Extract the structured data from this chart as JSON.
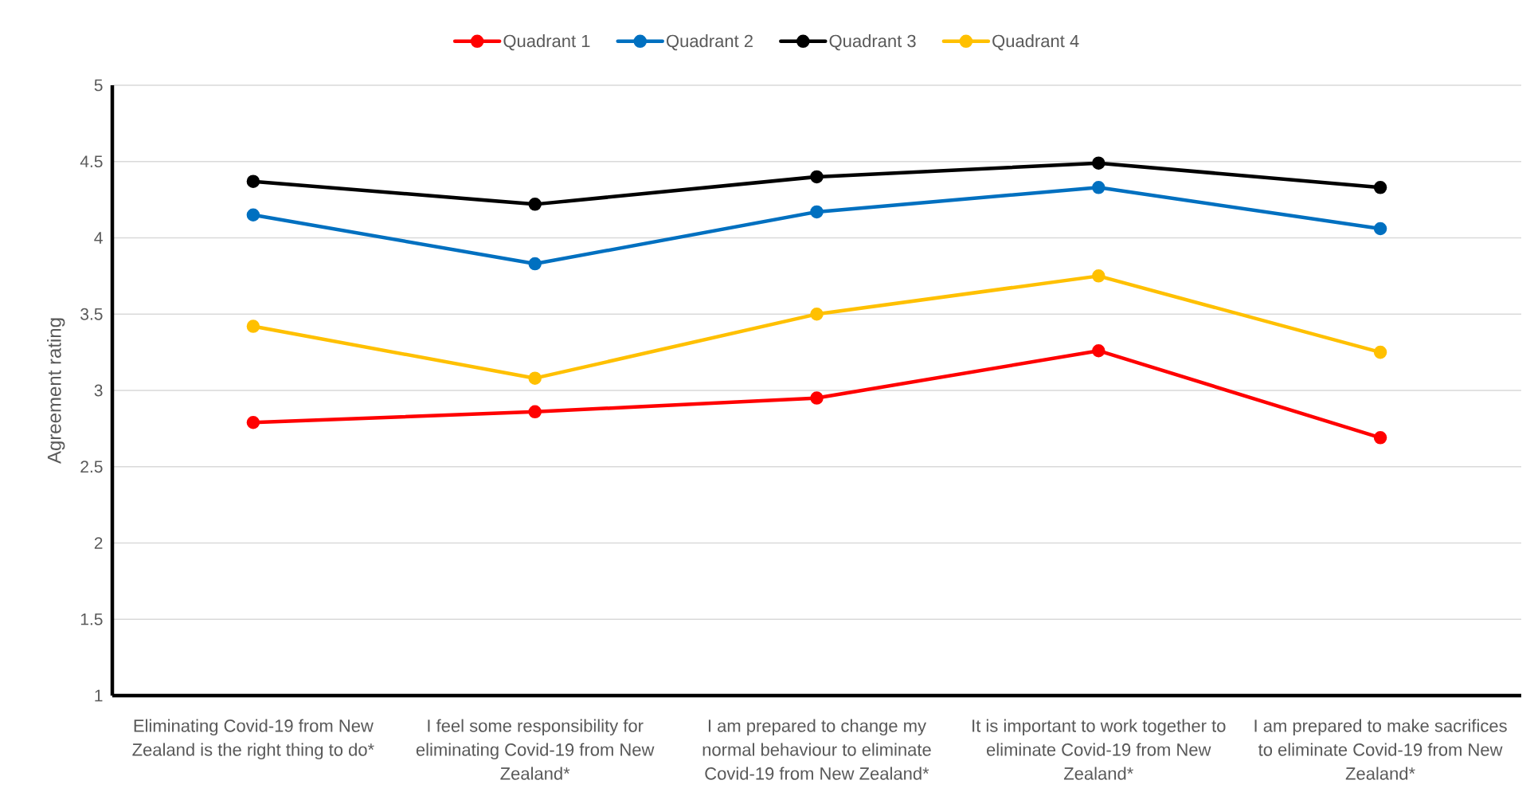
{
  "chart_data": {
    "type": "line",
    "categories": [
      "Eliminating Covid-19 from New Zealand is the right thing to do*",
      "I feel some responsibility for eliminating Covid-19 from New Zealand*",
      "I am prepared to change my normal behaviour to eliminate Covid-19 from New Zealand*",
      "It is important to work together to eliminate Covid-19 from New Zealand*",
      "I am prepared to make sacrifices to eliminate Covid-19 from New Zealand*"
    ],
    "series": [
      {
        "name": "Quadrant 1",
        "color": "#ff0000",
        "values": [
          2.79,
          2.86,
          2.95,
          3.26,
          2.69
        ]
      },
      {
        "name": "Quadrant 2",
        "color": "#0070c0",
        "values": [
          4.15,
          3.83,
          4.17,
          4.33,
          4.06
        ]
      },
      {
        "name": "Quadrant 3",
        "color": "#000000",
        "values": [
          4.37,
          4.22,
          4.4,
          4.49,
          4.33
        ]
      },
      {
        "name": "Quadrant 4",
        "color": "#ffc000",
        "values": [
          3.42,
          3.08,
          3.5,
          3.75,
          3.25
        ]
      }
    ],
    "ylabel": "Agreement rating",
    "ylim": [
      1,
      5
    ],
    "yticks": [
      1,
      1.5,
      2,
      2.5,
      3,
      3.5,
      4,
      4.5,
      5
    ],
    "grid": "y",
    "legend": "top",
    "marker": "circle",
    "line_style": "solid"
  }
}
